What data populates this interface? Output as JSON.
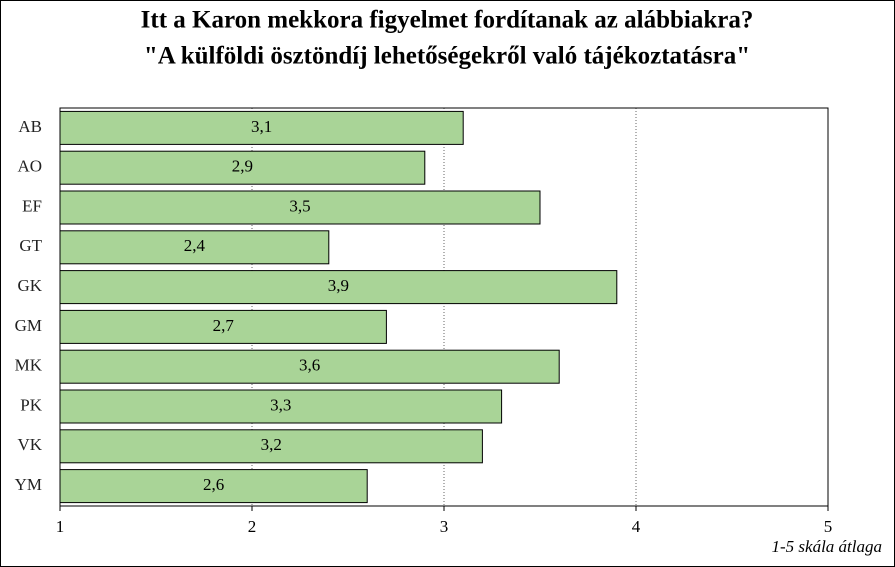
{
  "chart_data": {
    "type": "bar",
    "title": "Itt a Karon mekkora figyelmet fordítanak az alábbiakra?",
    "subtitle": "\"A külföldi ösztöndíj lehetőségekről való tájékoztatásra\"",
    "x_label": "1-5 skála átlaga",
    "categories": [
      "AB",
      "AO",
      "EF",
      "GT",
      "GK",
      "GM",
      "MK",
      "PK",
      "VK",
      "YM"
    ],
    "values": [
      3.1,
      2.9,
      3.5,
      2.4,
      3.9,
      2.7,
      3.6,
      3.3,
      3.2,
      2.6
    ],
    "value_labels": [
      "3,1",
      "2,9",
      "3,5",
      "2,4",
      "3,9",
      "2,7",
      "3,6",
      "3,3",
      "3,2",
      "2,6"
    ],
    "color": "#a9d497",
    "xlim": [
      1,
      5
    ],
    "xticks": [
      1,
      2,
      3,
      4,
      5
    ],
    "grid": true
  }
}
